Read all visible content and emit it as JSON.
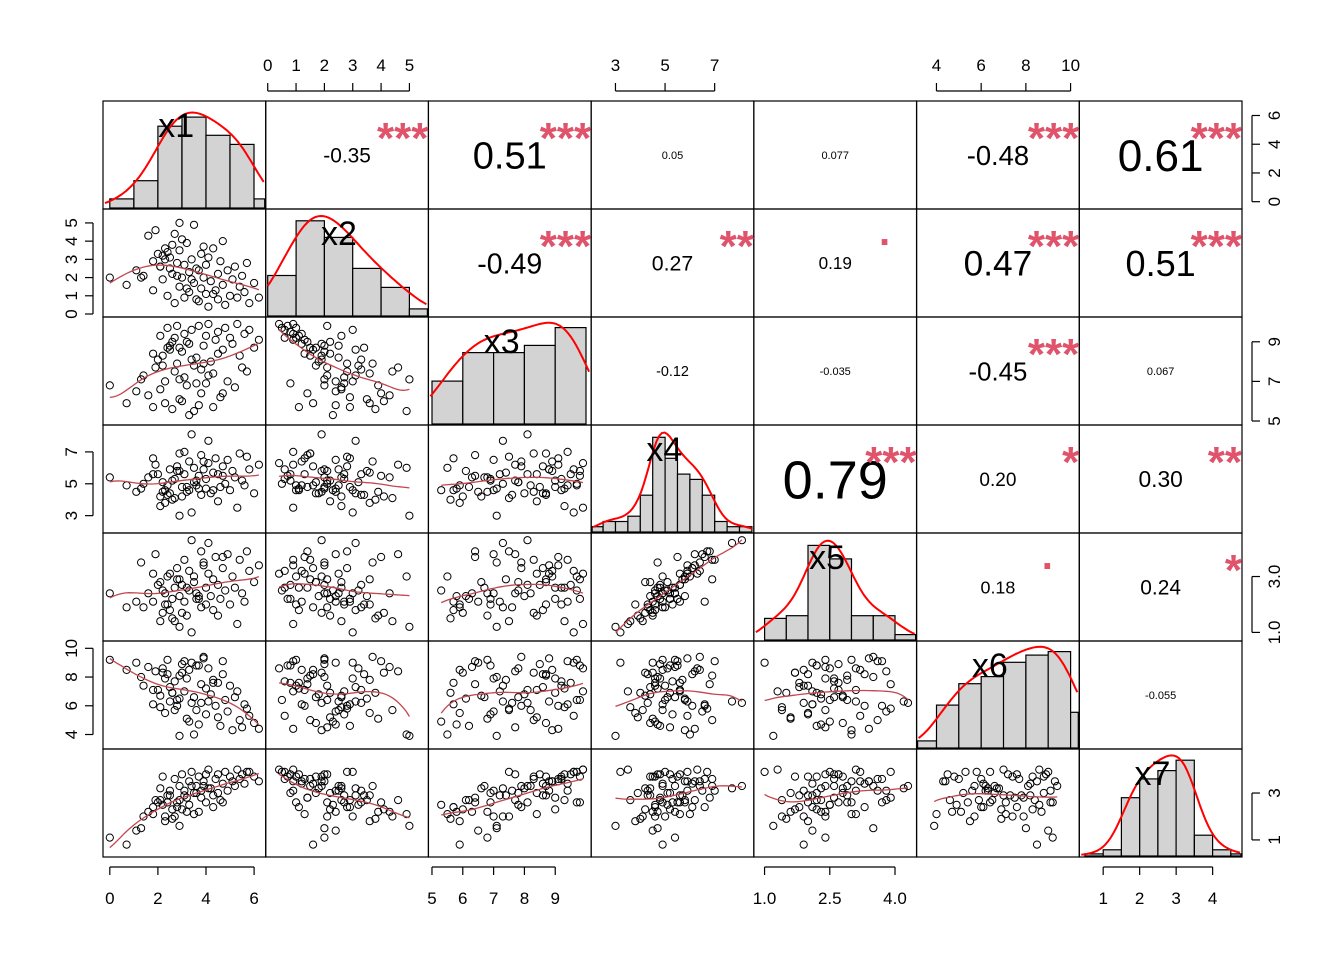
{
  "chart_data": {
    "type": "scatter",
    "title": "",
    "variables": [
      "x1",
      "x2",
      "x3",
      "x4",
      "x5",
      "x6",
      "x7"
    ],
    "axes": [
      {
        "var": "x1",
        "ticks": [
          0,
          2,
          4,
          6
        ],
        "range": [
          -0.2,
          6.4
        ]
      },
      {
        "var": "x2",
        "ticks": [
          0,
          1,
          2,
          3,
          4,
          5
        ],
        "range": [
          0,
          5.6
        ]
      },
      {
        "var": "x3",
        "ticks": [
          5,
          6,
          7,
          8,
          9
        ],
        "range": [
          4.95,
          10.1
        ]
      },
      {
        "var": "x4",
        "ticks": [
          3,
          5,
          7
        ],
        "range": [
          2.1,
          8.5
        ]
      },
      {
        "var": "x5",
        "ticks": [
          1.0,
          2.5,
          4.0
        ],
        "tick_labels": [
          "1.0",
          "2.5",
          "4.0"
        ],
        "range": [
          0.8,
          4.45
        ]
      },
      {
        "var": "x6",
        "ticks": [
          4,
          6,
          8,
          10
        ],
        "range": [
          3.2,
          10.3
        ]
      },
      {
        "var": "x7",
        "ticks": [
          1,
          2,
          3,
          4
        ],
        "range": [
          0.4,
          4.75
        ]
      }
    ],
    "top_axis_columns": [
      1,
      3,
      5
    ],
    "bottom_axis_columns": [
      0,
      2,
      4,
      6
    ],
    "left_axis_rows": [
      1,
      3,
      5
    ],
    "right_axis_rows": [
      0,
      2,
      4,
      6
    ],
    "right_axis_ticks": {
      "0": {
        "ticks": [
          0,
          2,
          4,
          6
        ],
        "range": [
          -0.3,
          6.8
        ]
      },
      "2": {
        "ticks": [
          5,
          7,
          9
        ],
        "range": [
          4.95,
          10.1
        ]
      },
      "4": {
        "ticks": [
          1.0,
          3.0
        ],
        "tick_labels": [
          "1.0",
          "3.0"
        ],
        "range": [
          0.8,
          4.45
        ]
      },
      "6": {
        "ticks": [
          1,
          3
        ],
        "range": [
          0.4,
          4.75
        ]
      }
    },
    "histograms": [
      {
        "var": "x1",
        "bin_edges": [
          0,
          1,
          2,
          3,
          4,
          5,
          6,
          7
        ],
        "counts": [
          1,
          3,
          9,
          10,
          8,
          7,
          1
        ],
        "hmax": 11
      },
      {
        "var": "x2",
        "bin_edges": [
          0,
          1,
          2,
          3,
          4,
          5,
          6
        ],
        "counts": [
          17,
          40,
          33,
          20,
          12,
          3
        ],
        "hmax": 42
      },
      {
        "var": "x3",
        "bin_edges": [
          5,
          6,
          7,
          8,
          9,
          10
        ],
        "counts": [
          12,
          20,
          20,
          22,
          27
        ],
        "hmax": 28
      },
      {
        "var": "x4",
        "bin_edges": [
          2,
          2.5,
          3,
          3.5,
          4,
          4.5,
          5,
          5.5,
          6,
          6.5,
          7,
          7.5,
          8,
          8.5
        ],
        "counts": [
          1,
          2,
          2,
          3,
          7,
          18,
          14,
          11,
          10,
          7,
          2,
          1,
          1
        ],
        "hmax": 19
      },
      {
        "var": "x5",
        "bin_edges": [
          1.0,
          1.5,
          2.0,
          2.5,
          3.0,
          3.5,
          4.0,
          4.5
        ],
        "counts": [
          8,
          9,
          35,
          30,
          9,
          9,
          2
        ],
        "hmax": 37
      },
      {
        "var": "x6",
        "bin_edges": [
          3,
          4,
          5,
          6,
          7,
          8,
          9,
          10,
          11
        ],
        "counts": [
          2,
          12,
          18,
          20,
          24,
          26,
          27,
          10
        ],
        "hmax": 28
      },
      {
        "var": "x7",
        "bin_edges": [
          0.5,
          1,
          1.5,
          2,
          2.5,
          3,
          3.5,
          4,
          4.5,
          5
        ],
        "counts": [
          1,
          3,
          28,
          37,
          41,
          46,
          10,
          3,
          1
        ],
        "hmax": 48
      }
    ],
    "correlations": [
      {
        "row": 0,
        "col": 1,
        "r": "-0.35",
        "sig": "***",
        "size": 0.55
      },
      {
        "row": 0,
        "col": 2,
        "r": "0.51",
        "sig": "***",
        "size": 1.0
      },
      {
        "row": 0,
        "col": 3,
        "r": "0.05",
        "sig": "",
        "size": 0.27
      },
      {
        "row": 0,
        "col": 4,
        "r": "0.077",
        "sig": "",
        "size": 0.26
      },
      {
        "row": 0,
        "col": 5,
        "r": "-0.48",
        "sig": "***",
        "size": 0.72
      },
      {
        "row": 0,
        "col": 6,
        "r": "0.61",
        "sig": "***",
        "size": 1.16
      },
      {
        "row": 1,
        "col": 2,
        "r": "-0.49",
        "sig": "***",
        "size": 0.75
      },
      {
        "row": 1,
        "col": 3,
        "r": "0.27",
        "sig": "**",
        "size": 0.56
      },
      {
        "row": 1,
        "col": 4,
        "r": "0.19",
        "sig": ".",
        "size": 0.45
      },
      {
        "row": 1,
        "col": 5,
        "r": "0.47",
        "sig": "***",
        "size": 0.93
      },
      {
        "row": 1,
        "col": 6,
        "r": "0.51",
        "sig": "***",
        "size": 0.95
      },
      {
        "row": 2,
        "col": 3,
        "r": "-0.12",
        "sig": "",
        "size": 0.38
      },
      {
        "row": 2,
        "col": 4,
        "r": "-0.035",
        "sig": "",
        "size": 0.2
      },
      {
        "row": 2,
        "col": 5,
        "r": "-0.45",
        "sig": "***",
        "size": 0.68
      },
      {
        "row": 2,
        "col": 6,
        "r": "0.067",
        "sig": "",
        "size": 0.25
      },
      {
        "row": 3,
        "col": 4,
        "r": "0.79",
        "sig": "***",
        "size": 1.42
      },
      {
        "row": 3,
        "col": 5,
        "r": "0.20",
        "sig": "*",
        "size": 0.5
      },
      {
        "row": 3,
        "col": 6,
        "r": "0.30",
        "sig": "**",
        "size": 0.6
      },
      {
        "row": 4,
        "col": 5,
        "r": "0.18",
        "sig": ".",
        "size": 0.47
      },
      {
        "row": 4,
        "col": 6,
        "r": "0.24",
        "sig": "*",
        "size": 0.55
      },
      {
        "row": 5,
        "col": 6,
        "r": "-0.055",
        "sig": "",
        "size": 0.22
      }
    ],
    "observations": [
      {
        "x1": 0.0,
        "x2": 2.0,
        "x3": 6.8,
        "x4": 5.4,
        "x5": 2.4,
        "x6": 9.2,
        "x7": 1.1
      },
      {
        "x1": 0.7,
        "x2": 1.6,
        "x3": 5.9,
        "x4": 4.9,
        "x5": 1.9,
        "x6": 8.5,
        "x7": 0.8
      },
      {
        "x1": 1.3,
        "x2": 2.0,
        "x3": 7.1,
        "x4": 4.7,
        "x5": 3.5,
        "x6": 8.0,
        "x7": 1.5
      },
      {
        "x1": 1.4,
        "x2": 2.1,
        "x3": 7.3,
        "x4": 5.0,
        "x5": 1.9,
        "x6": 7.4,
        "x7": 2.0
      },
      {
        "x1": 1.6,
        "x2": 4.3,
        "x3": 6.3,
        "x4": 5.4,
        "x5": 2.4,
        "x6": 8.7,
        "x7": 2.2
      },
      {
        "x1": 1.8,
        "x2": 2.9,
        "x3": 5.7,
        "x4": 6.6,
        "x5": 2.1,
        "x6": 6.1,
        "x7": 2.4
      },
      {
        "x1": 1.9,
        "x2": 4.6,
        "x3": 7.7,
        "x4": 6.2,
        "x5": 3.8,
        "x6": 8.4,
        "x7": 2.7
      },
      {
        "x1": 2.0,
        "x2": 3.3,
        "x3": 8.1,
        "x4": 5.6,
        "x5": 2.7,
        "x6": 7.1,
        "x7": 2.6
      },
      {
        "x1": 2.1,
        "x2": 2.6,
        "x3": 6.6,
        "x4": 4.2,
        "x5": 2.8,
        "x6": 6.7,
        "x7": 3.2
      },
      {
        "x1": 2.2,
        "x2": 1.9,
        "x3": 8.3,
        "x4": 4.5,
        "x5": 1.7,
        "x6": 8.3,
        "x7": 3.7
      },
      {
        "x1": 2.3,
        "x2": 3.0,
        "x3": 7.0,
        "x4": 4.6,
        "x5": 2.4,
        "x6": 7.9,
        "x7": 2.0
      },
      {
        "x1": 2.3,
        "x2": 3.6,
        "x3": 5.9,
        "x4": 3.8,
        "x5": 2.0,
        "x6": 5.5,
        "x7": 1.8
      },
      {
        "x1": 2.4,
        "x2": 1.0,
        "x3": 9.7,
        "x4": 4.9,
        "x5": 3.0,
        "x6": 9.2,
        "x7": 2.6
      },
      {
        "x1": 2.5,
        "x2": 2.5,
        "x3": 8.8,
        "x4": 5.9,
        "x5": 3.1,
        "x6": 6.3,
        "x7": 3.1
      },
      {
        "x1": 2.5,
        "x2": 3.1,
        "x3": 8.6,
        "x4": 4.4,
        "x5": 1.8,
        "x6": 7.3,
        "x7": 2.9
      },
      {
        "x1": 2.6,
        "x2": 2.2,
        "x3": 9.0,
        "x4": 5.2,
        "x5": 2.2,
        "x6": 6.9,
        "x7": 2.3
      },
      {
        "x1": 2.7,
        "x2": 0.6,
        "x3": 9.2,
        "x4": 5.3,
        "x5": 2.6,
        "x6": 7.7,
        "x7": 3.6
      },
      {
        "x1": 2.7,
        "x2": 4.4,
        "x3": 7.5,
        "x4": 4.1,
        "x5": 1.4,
        "x6": 5.7,
        "x7": 2.0
      },
      {
        "x1": 2.8,
        "x2": 2.8,
        "x3": 7.9,
        "x4": 6.1,
        "x5": 3.3,
        "x6": 6.0,
        "x7": 2.4
      },
      {
        "x1": 2.9,
        "x2": 1.5,
        "x3": 8.7,
        "x4": 6.9,
        "x5": 2.9,
        "x6": 8.1,
        "x7": 3.3
      },
      {
        "x1": 2.9,
        "x2": 3.5,
        "x3": 6.1,
        "x4": 5.8,
        "x5": 2.3,
        "x6": 6.5,
        "x7": 2.7
      },
      {
        "x1": 3.0,
        "x2": 2.0,
        "x3": 8.5,
        "x4": 4.8,
        "x5": 2.7,
        "x6": 8.9,
        "x7": 3.8
      },
      {
        "x1": 3.1,
        "x2": 0.9,
        "x3": 9.4,
        "x4": 7.0,
        "x5": 3.6,
        "x6": 9.1,
        "x7": 3.1
      },
      {
        "x1": 3.1,
        "x2": 2.7,
        "x3": 7.2,
        "x4": 5.6,
        "x5": 2.1,
        "x6": 7.0,
        "x7": 2.9
      },
      {
        "x1": 3.2,
        "x2": 3.9,
        "x3": 6.8,
        "x4": 4.5,
        "x5": 1.6,
        "x6": 5.1,
        "x7": 2.2
      },
      {
        "x1": 3.3,
        "x2": 1.2,
        "x3": 8.9,
        "x4": 6.4,
        "x5": 3.2,
        "x6": 8.5,
        "x7": 3.5
      },
      {
        "x1": 3.3,
        "x2": 2.3,
        "x3": 5.3,
        "x4": 4.6,
        "x5": 2.5,
        "x6": 4.9,
        "x7": 2.5
      },
      {
        "x1": 3.4,
        "x2": 3.0,
        "x3": 9.6,
        "x4": 3.2,
        "x5": 1.0,
        "x6": 9.0,
        "x7": 3.9
      },
      {
        "x1": 3.5,
        "x2": 1.7,
        "x3": 7.8,
        "x4": 5.1,
        "x5": 2.8,
        "x6": 6.6,
        "x7": 3.0
      },
      {
        "x1": 3.5,
        "x2": 4.9,
        "x3": 5.5,
        "x4": 6.0,
        "x5": 3.0,
        "x6": 4.0,
        "x7": 2.1
      },
      {
        "x1": 3.6,
        "x2": 2.5,
        "x3": 8.2,
        "x4": 4.9,
        "x5": 2.4,
        "x6": 5.7,
        "x7": 3.3
      },
      {
        "x1": 3.7,
        "x2": 0.7,
        "x3": 9.8,
        "x4": 5.5,
        "x5": 2.2,
        "x6": 8.8,
        "x7": 3.7
      },
      {
        "x1": 3.8,
        "x2": 1.4,
        "x3": 6.4,
        "x4": 6.8,
        "x5": 3.9,
        "x6": 7.5,
        "x7": 2.8
      },
      {
        "x1": 3.8,
        "x2": 3.3,
        "x3": 7.6,
        "x4": 4.3,
        "x5": 1.9,
        "x6": 6.2,
        "x7": 3.1
      },
      {
        "x1": 3.9,
        "x2": 2.0,
        "x3": 8.8,
        "x4": 5.9,
        "x5": 3.4,
        "x6": 9.3,
        "x7": 3.5
      },
      {
        "x1": 4.0,
        "x2": 1.1,
        "x3": 9.3,
        "x4": 4.7,
        "x5": 2.6,
        "x6": 7.2,
        "x7": 3.8
      },
      {
        "x1": 4.0,
        "x2": 2.7,
        "x3": 6.9,
        "x4": 5.3,
        "x5": 2.0,
        "x6": 5.4,
        "x7": 2.6
      },
      {
        "x1": 4.1,
        "x2": 0.4,
        "x3": 9.9,
        "x4": 6.3,
        "x5": 3.1,
        "x6": 8.6,
        "x7": 4.0
      },
      {
        "x1": 4.2,
        "x2": 1.8,
        "x3": 8.0,
        "x4": 4.4,
        "x5": 2.3,
        "x6": 6.8,
        "x7": 3.2
      },
      {
        "x1": 4.3,
        "x2": 3.6,
        "x3": 7.4,
        "x4": 5.7,
        "x5": 2.9,
        "x6": 7.8,
        "x7": 2.9
      },
      {
        "x1": 4.4,
        "x2": 1.3,
        "x3": 9.1,
        "x4": 6.6,
        "x5": 3.7,
        "x6": 6.0,
        "x7": 3.6
      },
      {
        "x1": 4.5,
        "x2": 2.2,
        "x3": 8.4,
        "x4": 3.9,
        "x5": 1.6,
        "x6": 5.2,
        "x7": 3.0
      },
      {
        "x1": 4.5,
        "x2": 0.8,
        "x3": 9.5,
        "x4": 5.6,
        "x5": 2.7,
        "x6": 7.6,
        "x7": 3.8
      },
      {
        "x1": 4.6,
        "x2": 2.9,
        "x3": 6.2,
        "x4": 4.8,
        "x5": 2.2,
        "x6": 4.6,
        "x7": 2.7
      },
      {
        "x1": 4.7,
        "x2": 1.6,
        "x3": 8.6,
        "x4": 6.1,
        "x5": 3.3,
        "x6": 8.2,
        "x7": 3.4
      },
      {
        "x1": 4.8,
        "x2": 0.5,
        "x3": 9.7,
        "x4": 5.0,
        "x5": 2.5,
        "x6": 6.4,
        "x7": 3.9
      },
      {
        "x1": 4.9,
        "x2": 2.4,
        "x3": 7.0,
        "x4": 6.5,
        "x5": 3.8,
        "x6": 5.6,
        "x7": 3.1
      },
      {
        "x1": 5.0,
        "x2": 1.0,
        "x3": 9.2,
        "x4": 4.6,
        "x5": 2.0,
        "x6": 7.4,
        "x7": 3.7
      },
      {
        "x1": 5.1,
        "x2": 1.9,
        "x3": 8.9,
        "x4": 5.8,
        "x5": 3.0,
        "x6": 4.3,
        "x7": 3.5
      },
      {
        "x1": 5.2,
        "x2": 2.6,
        "x3": 6.7,
        "x4": 5.4,
        "x5": 2.6,
        "x6": 6.6,
        "x7": 3.3
      },
      {
        "x1": 5.3,
        "x2": 0.9,
        "x3": 9.9,
        "x4": 3.5,
        "x5": 1.3,
        "x6": 7.0,
        "x7": 4.0
      },
      {
        "x1": 5.4,
        "x2": 1.5,
        "x3": 8.3,
        "x4": 6.9,
        "x5": 3.6,
        "x6": 5.0,
        "x7": 3.6
      },
      {
        "x1": 5.5,
        "x2": 2.1,
        "x3": 7.7,
        "x4": 5.2,
        "x5": 2.4,
        "x6": 4.5,
        "x7": 3.8
      },
      {
        "x1": 5.6,
        "x2": 1.2,
        "x3": 9.4,
        "x4": 4.9,
        "x5": 2.1,
        "x6": 6.1,
        "x7": 3.4
      },
      {
        "x1": 5.8,
        "x2": 0.6,
        "x3": 9.6,
        "x4": 5.9,
        "x5": 3.2,
        "x6": 5.3,
        "x7": 3.9
      },
      {
        "x1": 6.0,
        "x2": 1.7,
        "x3": 8.7,
        "x4": 4.4,
        "x5": 2.8,
        "x6": 4.8,
        "x7": 3.7
      },
      {
        "x1": 6.2,
        "x2": 0.9,
        "x3": 9.1,
        "x4": 6.2,
        "x5": 3.4,
        "x6": 4.4,
        "x7": 3.5
      },
      {
        "x1": 2.6,
        "x2": 3.8,
        "x3": 5.6,
        "x4": 4.0,
        "x5": 1.5,
        "x6": 6.9,
        "x7": 1.9
      },
      {
        "x1": 3.0,
        "x2": 4.1,
        "x3": 6.0,
        "x4": 4.2,
        "x5": 1.7,
        "x6": 8.3,
        "x7": 2.3
      },
      {
        "x1": 2.2,
        "x2": 3.2,
        "x3": 7.8,
        "x4": 5.1,
        "x5": 2.5,
        "x6": 8.6,
        "x7": 2.5
      },
      {
        "x1": 3.7,
        "x2": 2.4,
        "x3": 5.8,
        "x4": 4.7,
        "x5": 2.3,
        "x6": 4.7,
        "x7": 2.2
      },
      {
        "x1": 4.1,
        "x2": 3.1,
        "x3": 7.3,
        "x4": 7.7,
        "x5": 4.2,
        "x6": 6.3,
        "x7": 3.2
      },
      {
        "x1": 3.4,
        "x2": 1.9,
        "x3": 8.1,
        "x4": 8.1,
        "x5": 4.3,
        "x6": 6.2,
        "x7": 3.3
      },
      {
        "x1": 1.1,
        "x2": 2.4,
        "x3": 6.5,
        "x4": 4.5,
        "x5": 2.1,
        "x6": 9.0,
        "x7": 1.4
      },
      {
        "x1": 2.9,
        "x2": 5.0,
        "x3": 7.1,
        "x4": 3.0,
        "x5": 1.2,
        "x6": 3.9,
        "x7": 1.6
      },
      {
        "x1": 3.2,
        "x2": 1.4,
        "x3": 9.0,
        "x4": 4.8,
        "x5": 2.6,
        "x6": 7.9,
        "x7": 2.8
      },
      {
        "x1": 4.7,
        "x2": 4.0,
        "x3": 6.4,
        "x4": 5.5,
        "x5": 3.7,
        "x6": 9.1,
        "x7": 2.6
      },
      {
        "x1": 1.8,
        "x2": 1.3,
        "x3": 8.4,
        "x4": 5.6,
        "x5": 3.1,
        "x6": 7.1,
        "x7": 2.1
      },
      {
        "x1": 5.7,
        "x2": 2.8,
        "x3": 7.5,
        "x4": 6.7,
        "x5": 3.9,
        "x6": 5.8,
        "x7": 3.9
      },
      {
        "x1": 2.4,
        "x2": 3.4,
        "x3": 8.7,
        "x4": 4.3,
        "x5": 2.0,
        "x6": 8.2,
        "x7": 2.9
      },
      {
        "x1": 3.6,
        "x2": 0.8,
        "x3": 6.9,
        "x4": 5.2,
        "x5": 2.2,
        "x6": 8.8,
        "x7": 3.0
      },
      {
        "x1": 4.3,
        "x2": 1.1,
        "x3": 5.7,
        "x4": 4.6,
        "x5": 1.8,
        "x6": 7.6,
        "x7": 2.4
      },
      {
        "x1": 2.8,
        "x2": 2.1,
        "x3": 9.8,
        "x4": 5.8,
        "x5": 2.9,
        "x6": 6.4,
        "x7": 2.6
      },
      {
        "x1": 3.9,
        "x2": 3.7,
        "x3": 7.9,
        "x4": 6.4,
        "x5": 3.5,
        "x6": 9.4,
        "x7": 3.3
      },
      {
        "x1": 2.1,
        "x2": 2.6,
        "x3": 9.3,
        "x4": 3.6,
        "x5": 1.4,
        "x6": 5.9,
        "x7": 2.7
      }
    ]
  }
}
